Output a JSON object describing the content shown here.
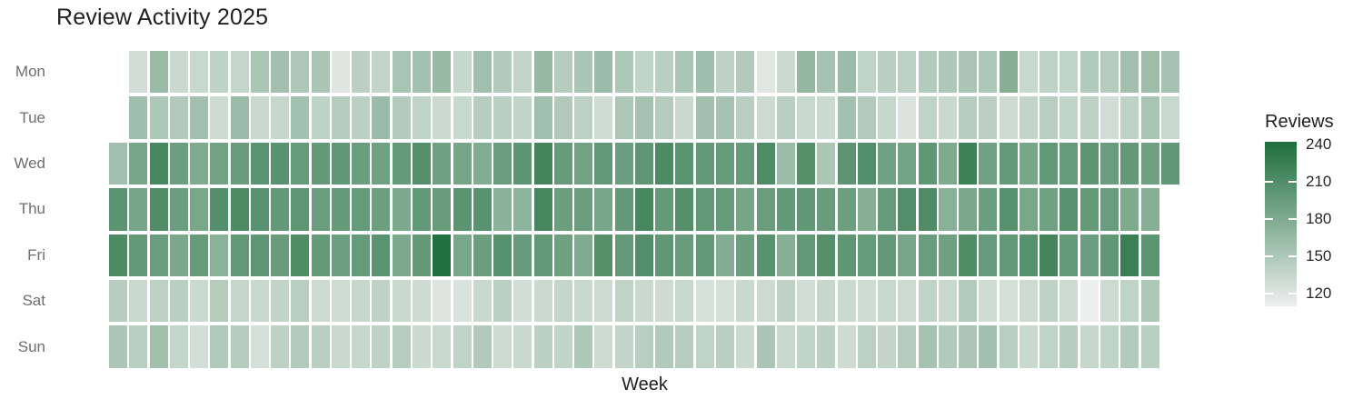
{
  "title": "Review Activity 2025",
  "xlabel": "Week",
  "legend_title": "Reviews",
  "chart_data": {
    "type": "heatmap",
    "title": "Review Activity 2025",
    "xlabel": "Week",
    "ylabel": "",
    "colorbar": {
      "title": "Reviews",
      "ticks": [
        240,
        210,
        180,
        150,
        120
      ],
      "value_range": [
        110,
        242
      ],
      "low_color": "#edefee",
      "high_color": "#1e6e3c"
    },
    "rows": [
      "Mon",
      "Tue",
      "Wed",
      "Thu",
      "Fri",
      "Sat",
      "Sun"
    ],
    "n_weeks": 53,
    "note_missing_cells": "week 1 has no Mon/Tue; week 53 has no Thu-Sun",
    "values": {
      "Mon": [
        null,
        128,
        163,
        133,
        134,
        140,
        136,
        152,
        158,
        150,
        153,
        119,
        142,
        137,
        154,
        157,
        164,
        135,
        159,
        148,
        137,
        165,
        146,
        153,
        162,
        150,
        138,
        143,
        152,
        160,
        141,
        148,
        118,
        132,
        167,
        155,
        162,
        139,
        143,
        141,
        147,
        150,
        153,
        150,
        176,
        134,
        140,
        138,
        148,
        146,
        158,
        161,
        155
      ],
      "Tue": [
        null,
        160,
        150,
        148,
        158,
        130,
        162,
        133,
        135,
        157,
        140,
        146,
        142,
        163,
        147,
        139,
        132,
        134,
        145,
        143,
        138,
        159,
        149,
        141,
        129,
        151,
        156,
        146,
        133,
        158,
        155,
        144,
        131,
        143,
        134,
        132,
        157,
        147,
        135,
        122,
        139,
        133,
        145,
        142,
        130,
        137,
        144,
        138,
        141,
        128,
        140,
        154,
        134
      ],
      "Wed": [
        158,
        185,
        215,
        192,
        180,
        188,
        195,
        203,
        205,
        196,
        198,
        200,
        193,
        190,
        197,
        207,
        191,
        186,
        178,
        194,
        202,
        218,
        196,
        189,
        199,
        193,
        201,
        212,
        204,
        198,
        196,
        196,
        211,
        162,
        207,
        152,
        202,
        208,
        190,
        187,
        200,
        181,
        222,
        190,
        197,
        185,
        199,
        196,
        202,
        194,
        198,
        191,
        200
      ],
      "Thu": [
        203,
        186,
        210,
        193,
        184,
        208,
        212,
        205,
        198,
        201,
        194,
        197,
        196,
        192,
        182,
        199,
        195,
        203,
        205,
        173,
        171,
        216,
        193,
        194,
        185,
        198,
        215,
        197,
        207,
        199,
        196,
        186,
        194,
        198,
        200,
        195,
        192,
        175,
        196,
        209,
        211,
        174,
        183,
        193,
        206,
        184,
        190,
        205,
        197,
        194,
        181,
        176,
        null
      ],
      "Fri": [
        212,
        198,
        194,
        183,
        196,
        172,
        199,
        201,
        195,
        210,
        197,
        192,
        196,
        204,
        182,
        198,
        240,
        184,
        193,
        206,
        196,
        199,
        191,
        180,
        207,
        197,
        209,
        200,
        195,
        198,
        178,
        193,
        205,
        176,
        199,
        207,
        201,
        196,
        198,
        185,
        194,
        191,
        210,
        196,
        199,
        206,
        218,
        197,
        193,
        200,
        224,
        202,
        null
      ],
      "Sat": [
        145,
        134,
        141,
        143,
        132,
        146,
        136,
        133,
        138,
        144,
        131,
        129,
        135,
        140,
        134,
        130,
        121,
        123,
        133,
        142,
        128,
        132,
        136,
        134,
        131,
        139,
        133,
        130,
        134,
        124,
        126,
        133,
        131,
        140,
        128,
        135,
        132,
        129,
        134,
        131,
        138,
        133,
        147,
        129,
        126,
        131,
        140,
        130,
        110,
        131,
        139,
        150,
        null
      ],
      "Sun": [
        152,
        143,
        158,
        136,
        127,
        149,
        146,
        125,
        141,
        147,
        144,
        133,
        135,
        140,
        145,
        132,
        134,
        139,
        148,
        130,
        133,
        142,
        138,
        150,
        131,
        137,
        144,
        148,
        145,
        139,
        143,
        132,
        153,
        134,
        138,
        142,
        130,
        141,
        137,
        146,
        155,
        148,
        152,
        158,
        144,
        133,
        139,
        145,
        135,
        138,
        147,
        143,
        null
      ]
    }
  }
}
